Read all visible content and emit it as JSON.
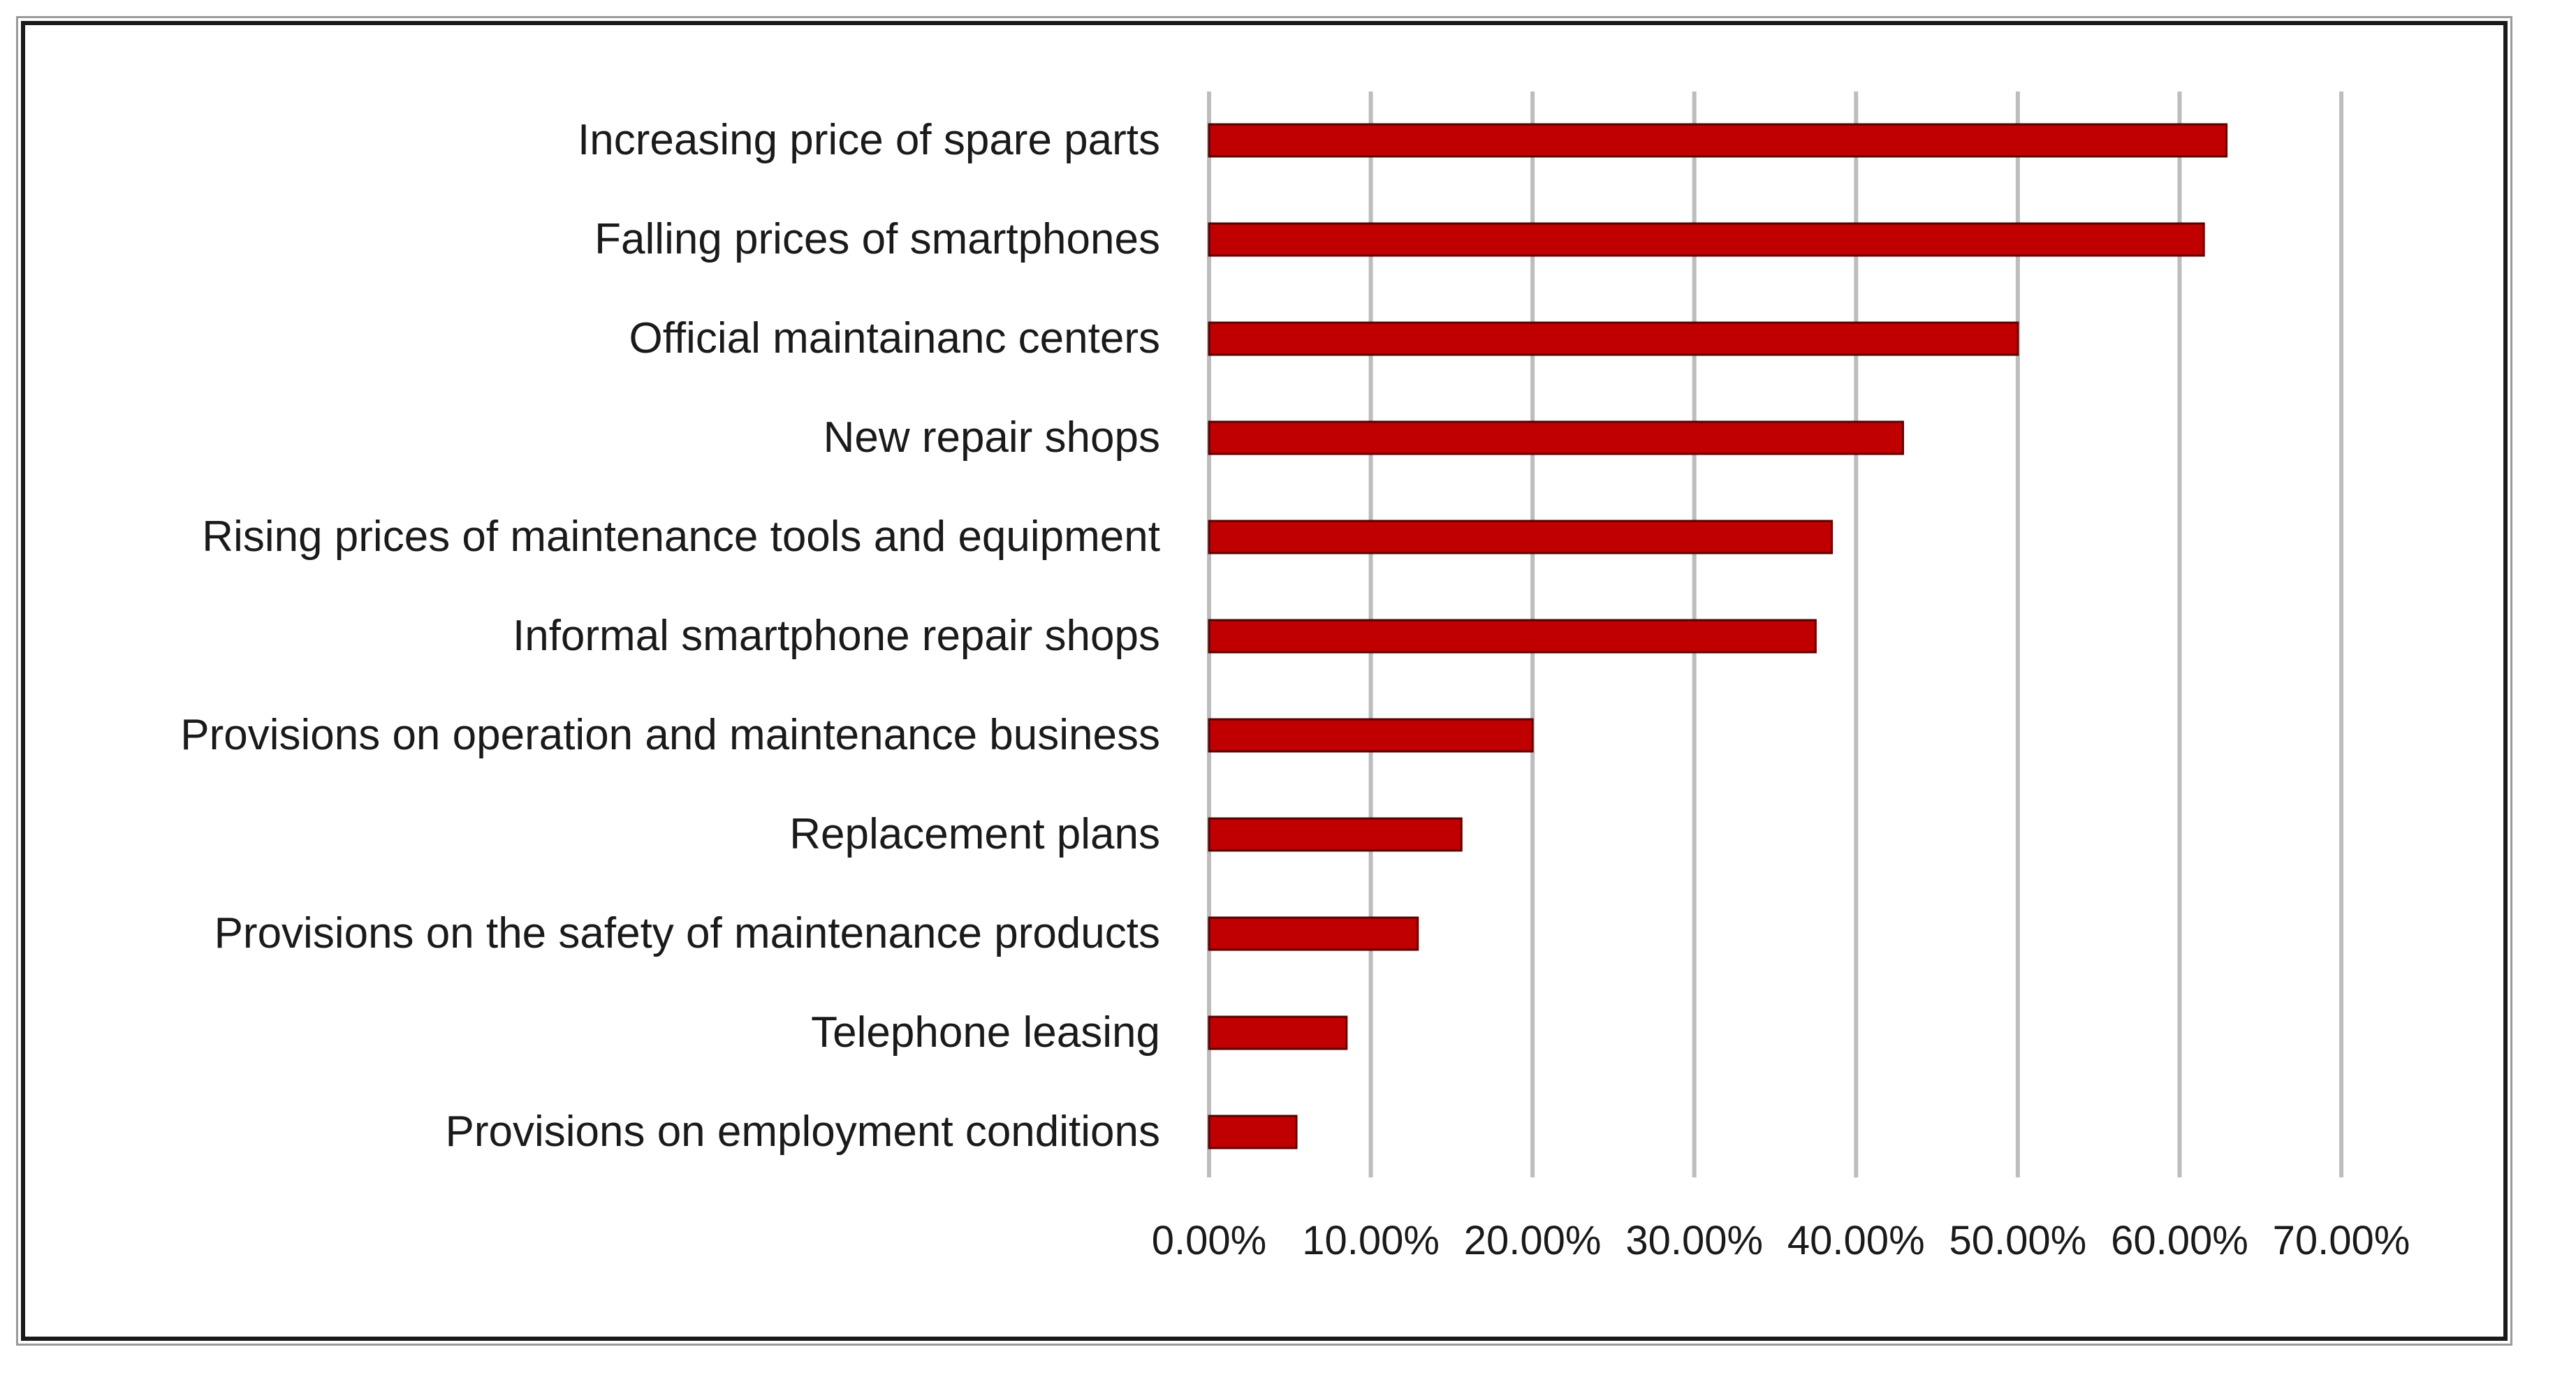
{
  "chart_data": {
    "type": "bar",
    "orientation": "horizontal",
    "title": "",
    "xlabel": "",
    "ylabel": "",
    "categories": [
      "Increasing price of spare parts",
      "Falling prices of smartphones",
      "Official maintainanc centers",
      "New repair shops",
      "Rising prices of maintenance tools and equipment",
      "Informal smartphone repair shops",
      "Provisions on operation and maintenance business",
      "Replacement plans",
      "Provisions on the safety of maintenance products",
      "Telephone leasing",
      "Provisions on employment conditions"
    ],
    "values": [
      62.9,
      61.5,
      50.0,
      42.9,
      38.5,
      37.5,
      20.0,
      15.6,
      12.9,
      8.5,
      5.4
    ],
    "xlim": [
      0,
      70
    ],
    "ticks": [
      0,
      10,
      20,
      30,
      40,
      50,
      60,
      70
    ],
    "tick_labels": [
      "0.00%",
      "10.00%",
      "20.00%",
      "30.00%",
      "40.00%",
      "50.00%",
      "60.00%",
      "70.00%"
    ],
    "grid": "vertical",
    "legend": "none",
    "bar_color": "#c00000"
  }
}
